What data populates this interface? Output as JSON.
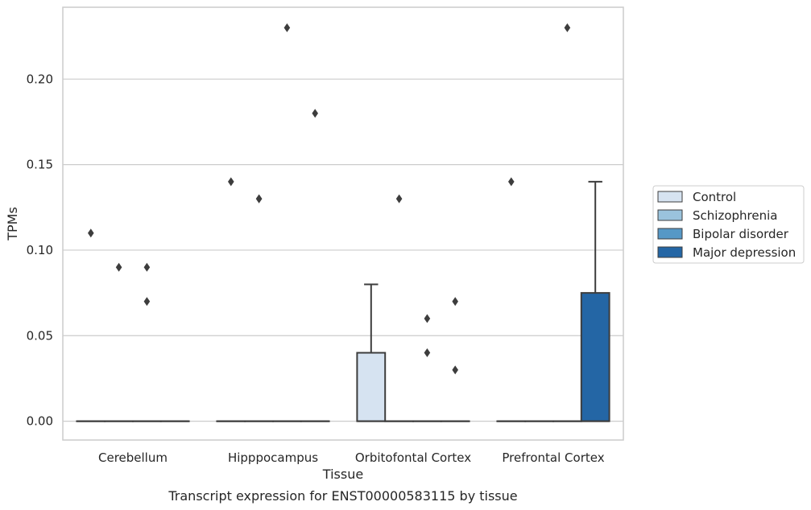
{
  "chart_data": {
    "type": "box",
    "title": "Transcript expression for ENST00000583115 by tissue",
    "xlabel": "Tissue",
    "ylabel": "TPMs",
    "categories": [
      "Cerebellum",
      "Hipppocampus",
      "Orbitofontal Cortex",
      "Prefrontal Cortex"
    ],
    "ylim": [
      -0.011,
      0.242
    ],
    "yticks": [
      0.0,
      0.05,
      0.1,
      0.15,
      0.2
    ],
    "ytick_labels": [
      "0.00",
      "0.05",
      "0.10",
      "0.15",
      "0.20"
    ],
    "grid": "horizontal",
    "legend_position": "right",
    "series": [
      {
        "name": "Control",
        "color": "#d6e3f1",
        "boxes": [
          {
            "q1": 0,
            "median": 0,
            "q3": 0,
            "whisker_low": 0,
            "whisker_high": 0,
            "outliers": [
              0.11
            ]
          },
          {
            "q1": 0,
            "median": 0,
            "q3": 0,
            "whisker_low": 0,
            "whisker_high": 0,
            "outliers": [
              0.14
            ]
          },
          {
            "q1": 0,
            "median": 0,
            "q3": 0.04,
            "whisker_low": 0,
            "whisker_high": 0.08,
            "outliers": []
          },
          {
            "q1": 0,
            "median": 0,
            "q3": 0,
            "whisker_low": 0,
            "whisker_high": 0,
            "outliers": [
              0.14
            ]
          }
        ]
      },
      {
        "name": "Schizophrenia",
        "color": "#9ac3dd",
        "boxes": [
          {
            "q1": 0,
            "median": 0,
            "q3": 0,
            "whisker_low": 0,
            "whisker_high": 0,
            "outliers": [
              0.09
            ]
          },
          {
            "q1": 0,
            "median": 0,
            "q3": 0,
            "whisker_low": 0,
            "whisker_high": 0,
            "outliers": [
              0.13,
              0.13
            ]
          },
          {
            "q1": 0,
            "median": 0,
            "q3": 0,
            "whisker_low": 0,
            "whisker_high": 0,
            "outliers": [
              0.13
            ]
          },
          {
            "q1": 0,
            "median": 0,
            "q3": 0,
            "whisker_low": 0,
            "whisker_high": 0,
            "outliers": []
          }
        ]
      },
      {
        "name": "Bipolar disorder",
        "color": "#5698c6",
        "boxes": [
          {
            "q1": 0,
            "median": 0,
            "q3": 0,
            "whisker_low": 0,
            "whisker_high": 0,
            "outliers": [
              0.09,
              0.07
            ]
          },
          {
            "q1": 0,
            "median": 0,
            "q3": 0,
            "whisker_low": 0,
            "whisker_high": 0,
            "outliers": [
              0.23
            ]
          },
          {
            "q1": 0,
            "median": 0,
            "q3": 0,
            "whisker_low": 0,
            "whisker_high": 0,
            "outliers": [
              0.06,
              0.04
            ]
          },
          {
            "q1": 0,
            "median": 0,
            "q3": 0,
            "whisker_low": 0,
            "whisker_high": 0,
            "outliers": [
              0.23
            ]
          }
        ]
      },
      {
        "name": "Major depression",
        "color": "#2466a5",
        "boxes": [
          {
            "q1": 0,
            "median": 0,
            "q3": 0,
            "whisker_low": 0,
            "whisker_high": 0,
            "outliers": []
          },
          {
            "q1": 0,
            "median": 0,
            "q3": 0,
            "whisker_low": 0,
            "whisker_high": 0,
            "outliers": [
              0.18
            ]
          },
          {
            "q1": 0,
            "median": 0,
            "q3": 0,
            "whisker_low": 0,
            "whisker_high": 0,
            "outliers": [
              0.07,
              0.03
            ]
          },
          {
            "q1": 0,
            "median": 0,
            "q3": 0.075,
            "whisker_low": 0,
            "whisker_high": 0.14,
            "outliers": []
          }
        ]
      }
    ]
  }
}
